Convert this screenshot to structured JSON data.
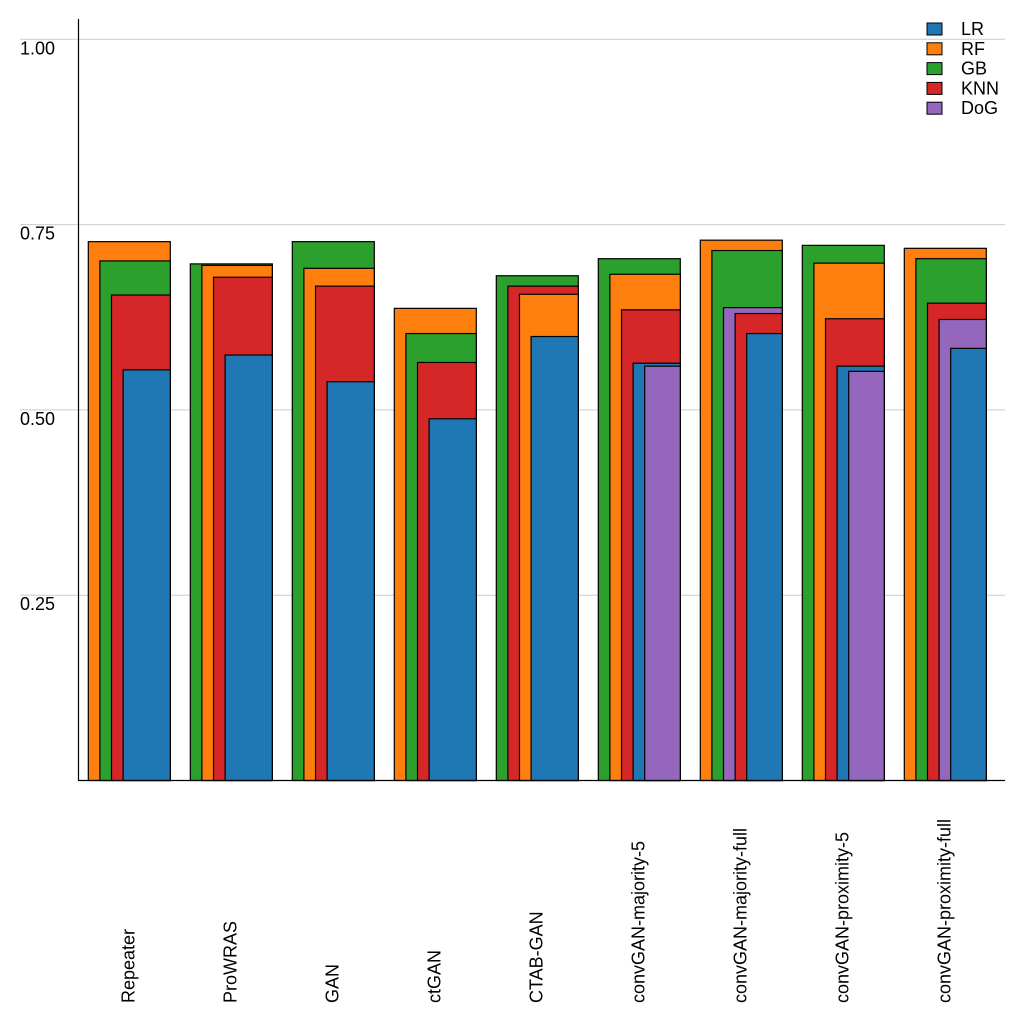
{
  "chart_data": {
    "type": "bar",
    "layout": "overlapping-grouped",
    "title": "",
    "xlabel": "",
    "ylabel": "",
    "ylim": [
      0,
      1.0
    ],
    "yticks": [
      0.25,
      0.5,
      0.75,
      1.0
    ],
    "ytick_labels": [
      "0.25",
      "0.50",
      "0.75",
      "1.00"
    ],
    "grid": "horizontal",
    "legend_position": "top-right",
    "categories": [
      "Repeater",
      "ProWRAS",
      "GAN",
      "ctGAN",
      "CTAB-GAN",
      "convGAN-majority-5",
      "convGAN-majority-full",
      "convGAN-proximity-5",
      "convGAN-proximity-full"
    ],
    "series": [
      {
        "name": "LR",
        "color": "#1f77b4",
        "values": [
          0.554,
          0.574,
          0.538,
          0.488,
          0.599,
          0.563,
          0.603,
          0.559,
          0.583
        ]
      },
      {
        "name": "RF",
        "color": "#ff7f0e",
        "values": [
          0.727,
          0.695,
          0.691,
          0.637,
          0.656,
          0.683,
          0.729,
          0.698,
          0.718
        ]
      },
      {
        "name": "GB",
        "color": "#2ca02c",
        "values": [
          0.701,
          0.697,
          0.727,
          0.603,
          0.681,
          0.704,
          0.715,
          0.722,
          0.704
        ]
      },
      {
        "name": "KNN",
        "color": "#d62728",
        "values": [
          0.655,
          0.679,
          0.667,
          0.564,
          0.667,
          0.635,
          0.63,
          0.623,
          0.644
        ]
      },
      {
        "name": "DoG",
        "color": "#9467bd",
        "values": [
          null,
          null,
          null,
          null,
          null,
          0.559,
          0.638,
          0.552,
          0.622
        ]
      }
    ]
  },
  "legend": {
    "items": [
      {
        "label": "LR",
        "color": "#1f77b4"
      },
      {
        "label": "RF",
        "color": "#ff7f0e"
      },
      {
        "label": "GB",
        "color": "#2ca02c"
      },
      {
        "label": "KNN",
        "color": "#d62728"
      },
      {
        "label": "DoG",
        "color": "#9467bd"
      }
    ]
  },
  "colors": {
    "grid": "#cccccc",
    "axis": "#000000",
    "bar_edge": "#000000"
  }
}
